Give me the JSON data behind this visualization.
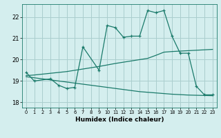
{
  "xlabel": "Humidex (Indice chaleur)",
  "background_color": "#d4eeee",
  "grid_color": "#aacece",
  "line_color": "#1a7a6a",
  "xlim": [
    -0.5,
    23.5
  ],
  "ylim": [
    17.75,
    22.6
  ],
  "xticks": [
    0,
    1,
    2,
    3,
    4,
    5,
    6,
    7,
    8,
    9,
    10,
    11,
    12,
    13,
    14,
    15,
    16,
    17,
    18,
    19,
    20,
    21,
    22,
    23
  ],
  "yticks": [
    18,
    19,
    20,
    21,
    22
  ],
  "main_x": [
    0,
    1,
    3,
    4,
    5,
    6,
    7,
    9,
    10,
    11,
    12,
    13,
    14,
    15,
    16,
    17,
    18,
    19,
    20,
    21,
    22,
    23
  ],
  "main_y": [
    19.4,
    19.0,
    19.1,
    18.8,
    18.65,
    18.7,
    20.6,
    19.5,
    21.6,
    21.5,
    21.05,
    21.1,
    21.1,
    22.3,
    22.2,
    22.3,
    21.1,
    20.3,
    20.3,
    18.75,
    18.35,
    18.35
  ],
  "upper_x": [
    0,
    1,
    2,
    3,
    4,
    5,
    6,
    7,
    8,
    9,
    10,
    11,
    12,
    13,
    14,
    15,
    16,
    17,
    18,
    19,
    20,
    21,
    22,
    23
  ],
  "upper_y": [
    19.25,
    19.28,
    19.32,
    19.36,
    19.4,
    19.44,
    19.5,
    19.56,
    19.62,
    19.68,
    19.75,
    19.82,
    19.88,
    19.94,
    20.0,
    20.06,
    20.2,
    20.35,
    20.38,
    20.4,
    20.42,
    20.44,
    20.46,
    20.48
  ],
  "lower_x": [
    0,
    1,
    2,
    3,
    4,
    5,
    6,
    7,
    8,
    9,
    10,
    11,
    12,
    13,
    14,
    15,
    16,
    17,
    18,
    19,
    20,
    21,
    22,
    23
  ],
  "lower_y": [
    19.2,
    19.15,
    19.1,
    19.05,
    19.0,
    18.95,
    18.9,
    18.85,
    18.8,
    18.75,
    18.7,
    18.65,
    18.6,
    18.55,
    18.5,
    18.47,
    18.44,
    18.41,
    18.38,
    18.36,
    18.34,
    18.33,
    18.32,
    18.31
  ]
}
